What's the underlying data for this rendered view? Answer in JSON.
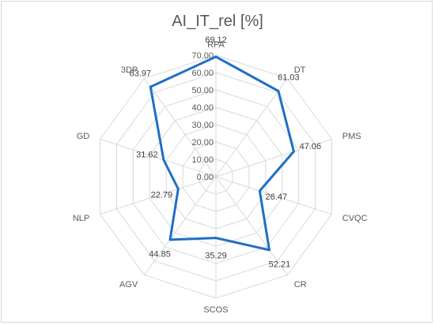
{
  "chart_data": {
    "type": "radar",
    "title": "AI_IT_rel [%]",
    "categories": [
      "RPA",
      "DT",
      "PMS",
      "CVQC",
      "CR",
      "SCOS",
      "AGV",
      "NLP",
      "GD",
      "3DP"
    ],
    "values": [
      69.12,
      61.03,
      47.06,
      26.47,
      52.21,
      35.29,
      44.85,
      22.79,
      31.62,
      63.97
    ],
    "data_labels": [
      "69.12",
      "61.03",
      "47.06",
      "26.47",
      "52.21",
      "35.29",
      "44.85",
      "22.79",
      "31.62",
      "63.97"
    ],
    "ylim": [
      0,
      70
    ],
    "ticks": [
      "0.00",
      "10.00",
      "20.00",
      "30.00",
      "40.00",
      "50.00",
      "60.00",
      "70.00"
    ],
    "grid": true,
    "legend": "none",
    "colors": {
      "series": "#1f6fc5",
      "grid": "#d9d9d9",
      "text": "#595959"
    }
  }
}
